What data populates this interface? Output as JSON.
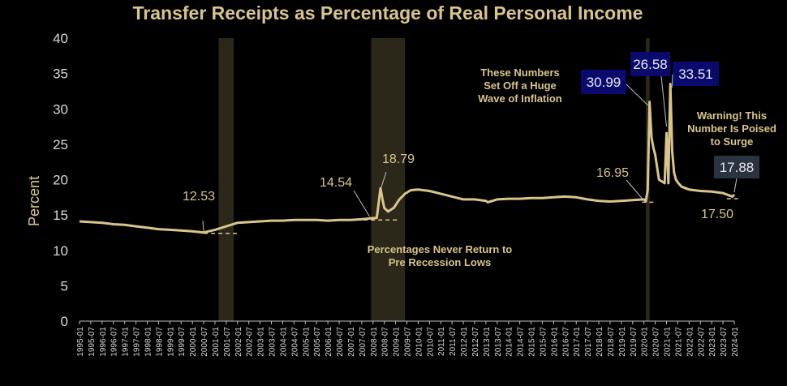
{
  "colors": {
    "background": "#000000",
    "line": "#d9c58a",
    "text": "#d9c58a",
    "tick_text": "#d9d9d9",
    "recession": "#2b2719",
    "box_dark_blue": "#0a0a6e",
    "box_slate": "#2a3440"
  },
  "chart_data": {
    "type": "line",
    "title": "Transfer Receipts as Percentage of Real Personal Income",
    "ylabel": "Percent",
    "xlabel": "",
    "ylim": [
      0,
      40
    ],
    "yticks": [
      0,
      5,
      10,
      15,
      20,
      25,
      30,
      35,
      40
    ],
    "x_tick_labels": [
      "1995-01",
      "1995-07",
      "1996-01",
      "1996-07",
      "1997-01",
      "1997-07",
      "1998-01",
      "1998-07",
      "1999-01",
      "1999-07",
      "2000-01",
      "2000-07",
      "2001-01",
      "2001-07",
      "2002-01",
      "2002-07",
      "2003-01",
      "2003-07",
      "2004-01",
      "2004-07",
      "2005-01",
      "2005-07",
      "2006-01",
      "2006-07",
      "2007-01",
      "2007-07",
      "2008-01",
      "2008-07",
      "2009-01",
      "2009-07",
      "2010-01",
      "2010-07",
      "2011-01",
      "2011-07",
      "2012-01",
      "2012-07",
      "2013-01",
      "2013-07",
      "2014-01",
      "2014-07",
      "2015-01",
      "2015-07",
      "2016-01",
      "2016-07",
      "2017-01",
      "2017-07",
      "2018-01",
      "2018-07",
      "2019-01",
      "2019-07",
      "2020-01",
      "2020-07",
      "2021-01",
      "2021-07",
      "2022-01",
      "2022-07",
      "2023-01",
      "2023-07",
      "2024-01"
    ],
    "grid": false,
    "recession_shading": [
      {
        "start": "2001-03",
        "end": "2001-11"
      },
      {
        "start": "2007-12",
        "end": "2009-06"
      },
      {
        "start": "2020-02",
        "end": "2020-04"
      }
    ],
    "series": [
      {
        "x": [
          "1995-01",
          "1995-07",
          "1996-01",
          "1996-07",
          "1997-01",
          "1997-07",
          "1998-01",
          "1998-07",
          "1999-01",
          "1999-07",
          "2000-01",
          "2000-07",
          "2001-01",
          "2001-07",
          "2002-01",
          "2002-07",
          "2003-01",
          "2003-07",
          "2004-01",
          "2004-07",
          "2005-01",
          "2005-07",
          "2006-01",
          "2006-07",
          "2007-01",
          "2007-07",
          "2007-12",
          "2008-03",
          "2008-05",
          "2008-06",
          "2008-07",
          "2008-09",
          "2008-12",
          "2009-03",
          "2009-06",
          "2009-09",
          "2010-01",
          "2010-07",
          "2011-01",
          "2011-07",
          "2012-01",
          "2012-07",
          "2013-01",
          "2013-02",
          "2013-07",
          "2014-01",
          "2014-07",
          "2015-01",
          "2015-07",
          "2016-01",
          "2016-07",
          "2017-01",
          "2017-07",
          "2018-01",
          "2018-07",
          "2019-01",
          "2019-07",
          "2020-01",
          "2020-02",
          "2020-03",
          "2020-04",
          "2020-05",
          "2020-06",
          "2020-07",
          "2020-09",
          "2020-12",
          "2021-01",
          "2021-02",
          "2021-03",
          "2021-04",
          "2021-05",
          "2021-06",
          "2021-07",
          "2021-09",
          "2022-01",
          "2022-07",
          "2023-01",
          "2023-07",
          "2023-09",
          "2023-10",
          "2023-11",
          "2023-12",
          "2024-01"
        ],
        "y": [
          14.1,
          14.0,
          13.9,
          13.7,
          13.6,
          13.4,
          13.2,
          13.0,
          12.9,
          12.8,
          12.7,
          12.53,
          12.9,
          13.4,
          13.9,
          14.0,
          14.1,
          14.2,
          14.2,
          14.3,
          14.3,
          14.3,
          14.2,
          14.3,
          14.3,
          14.4,
          14.54,
          14.6,
          18.79,
          17.2,
          16.0,
          15.5,
          16.0,
          17.2,
          18.0,
          18.5,
          18.6,
          18.4,
          18.0,
          17.6,
          17.2,
          17.2,
          17.0,
          16.8,
          17.2,
          17.3,
          17.3,
          17.4,
          17.4,
          17.5,
          17.6,
          17.5,
          17.2,
          17.0,
          16.9,
          17.0,
          17.1,
          17.2,
          16.95,
          18.5,
          30.99,
          26.0,
          24.5,
          23.5,
          20.0,
          19.5,
          26.58,
          19.5,
          33.51,
          24.0,
          21.0,
          20.0,
          19.6,
          19.0,
          18.6,
          18.4,
          18.3,
          18.1,
          17.9,
          17.8,
          17.7,
          17.6,
          17.88
        ]
      }
    ],
    "annotations": [
      {
        "id": "low_2000",
        "label": "12.53"
      },
      {
        "id": "pre_2008",
        "label": "14.54"
      },
      {
        "id": "spike_2008",
        "label": "18.79"
      },
      {
        "id": "pre_2020",
        "label": "16.95"
      },
      {
        "id": "spike_2020_04",
        "label": "30.99"
      },
      {
        "id": "spike_2021_01",
        "label": "26.58"
      },
      {
        "id": "spike_2021_03",
        "label": "33.51"
      },
      {
        "id": "latest",
        "label": "17.88"
      },
      {
        "id": "recent_low",
        "label": "17.50"
      }
    ],
    "notes": {
      "inflation": [
        "These Numbers",
        "Set Off a Huge",
        "Wave of Inflation"
      ],
      "never_return": [
        "Percentages Never Return to",
        "Pre Recession Lows"
      ],
      "warning": [
        "Warning! This",
        "Number Is Poised",
        "to Surge"
      ]
    }
  }
}
